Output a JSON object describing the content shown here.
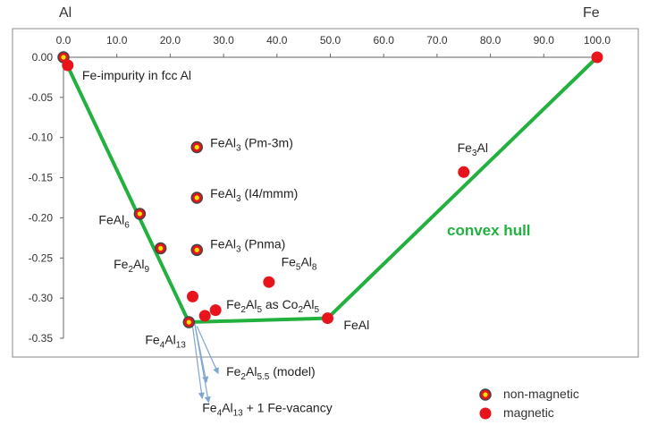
{
  "corner_labels": {
    "left": "Al",
    "right": "Fe"
  },
  "colors": {
    "hull": "#22b13f",
    "magnetic": "#e8141c",
    "nonmagnetic_outer": "#e8141c",
    "nonmagnetic_inner": "#f2e600",
    "nonmagnetic_ring": "#444444",
    "axis": "#666666",
    "hull_label": "#22b13f",
    "plot_border": "#888888"
  },
  "chart_data": {
    "type": "scatter",
    "xlim": [
      0,
      100
    ],
    "ylim": [
      -0.35,
      0.0
    ],
    "grid": false,
    "x_ticks": [
      0,
      10,
      20,
      30,
      40,
      50,
      60,
      70,
      80,
      90,
      100
    ],
    "x_tick_labels": [
      "0.0",
      "10.0",
      "20.0",
      "30.0",
      "40.0",
      "50.0",
      "60.0",
      "70.0",
      "80.0",
      "90.0",
      "100.0"
    ],
    "y_ticks": [
      0.0,
      -0.05,
      -0.1,
      -0.15,
      -0.2,
      -0.25,
      -0.3,
      -0.35
    ],
    "y_tick_labels": [
      "0.00",
      "-0.05",
      "-0.10",
      "-0.15",
      "-0.20",
      "-0.25",
      "-0.30",
      "-0.35"
    ],
    "hull": {
      "label": "convex hull",
      "points": [
        [
          0,
          0
        ],
        [
          23.5,
          -0.33
        ],
        [
          49.5,
          -0.325
        ],
        [
          100,
          0
        ]
      ]
    },
    "series": [
      {
        "name": "non-magnetic",
        "marker": "nonmagnetic",
        "points": [
          [
            0,
            0.0
          ],
          [
            14.3,
            -0.195
          ],
          [
            18.2,
            -0.238
          ],
          [
            23.5,
            -0.33
          ],
          [
            25,
            -0.112
          ],
          [
            25,
            -0.175
          ],
          [
            25,
            -0.24
          ]
        ]
      },
      {
        "name": "magnetic",
        "marker": "magnetic",
        "points": [
          [
            0.8,
            -0.01
          ],
          [
            24.2,
            -0.298
          ],
          [
            26.5,
            -0.322
          ],
          [
            28.5,
            -0.315
          ],
          [
            38.5,
            -0.28
          ],
          [
            49.5,
            -0.325
          ],
          [
            75,
            -0.143
          ],
          [
            100,
            0.0
          ]
        ]
      }
    ],
    "legend": {
      "placement": "bottom-right",
      "entries": [
        {
          "label": "non-magnetic",
          "marker": "nonmagnetic"
        },
        {
          "label": "magnetic",
          "marker": "magnetic"
        }
      ]
    },
    "annotations": [
      {
        "id": "fe-impurity",
        "parts": [
          {
            "t": "Fe-impurity in fcc Al"
          }
        ],
        "x": 3.5,
        "y": -0.028,
        "anchor": "start"
      },
      {
        "id": "feal3-pm3m",
        "parts": [
          {
            "t": "FeAl"
          },
          {
            "t": "3",
            "sub": true
          },
          {
            "t": " (Pm-3m)"
          }
        ],
        "x": 27.5,
        "y": -0.112,
        "anchor": "start"
      },
      {
        "id": "feal3-i4mmm",
        "parts": [
          {
            "t": "FeAl"
          },
          {
            "t": "3",
            "sub": true
          },
          {
            "t": " (I4/mmm)"
          }
        ],
        "x": 27.5,
        "y": -0.175,
        "anchor": "start"
      },
      {
        "id": "feal3-pnma",
        "parts": [
          {
            "t": "FeAl"
          },
          {
            "t": "3",
            "sub": true
          },
          {
            "t": " (Pnma)"
          }
        ],
        "x": 27.5,
        "y": -0.238,
        "anchor": "start"
      },
      {
        "id": "feal6",
        "parts": [
          {
            "t": "FeAl"
          },
          {
            "t": "6",
            "sub": true
          }
        ],
        "x": 6.6,
        "y": -0.208,
        "anchor": "start"
      },
      {
        "id": "fe2al9",
        "parts": [
          {
            "t": "Fe"
          },
          {
            "t": "2",
            "sub": true
          },
          {
            "t": "Al"
          },
          {
            "t": "9",
            "sub": true
          }
        ],
        "x": 9.4,
        "y": -0.263,
        "anchor": "start"
      },
      {
        "id": "fe5al8",
        "parts": [
          {
            "t": "Fe"
          },
          {
            "t": "5",
            "sub": true
          },
          {
            "t": "Al"
          },
          {
            "t": "8",
            "sub": true
          }
        ],
        "x": 40.8,
        "y": -0.26,
        "anchor": "start"
      },
      {
        "id": "fe2al5-co2al5",
        "parts": [
          {
            "t": "Fe"
          },
          {
            "t": "2",
            "sub": true
          },
          {
            "t": "Al"
          },
          {
            "t": "5",
            "sub": true
          },
          {
            "t": " as Co"
          },
          {
            "t": "2",
            "sub": true
          },
          {
            "t": "Al"
          },
          {
            "t": "5",
            "sub": true
          }
        ],
        "x": 30.5,
        "y": -0.313,
        "anchor": "start"
      },
      {
        "id": "feal",
        "parts": [
          {
            "t": "FeAl"
          }
        ],
        "x": 52.5,
        "y": -0.339,
        "anchor": "start"
      },
      {
        "id": "fe3al",
        "parts": [
          {
            "t": "Fe"
          },
          {
            "t": "3",
            "sub": true
          },
          {
            "t": "Al"
          }
        ],
        "x": 73.8,
        "y": -0.118,
        "anchor": "start"
      },
      {
        "id": "fe4al13",
        "parts": [
          {
            "t": "Fe"
          },
          {
            "t": "4",
            "sub": true
          },
          {
            "t": "Al"
          },
          {
            "t": "13",
            "sub": true
          }
        ],
        "x": 15.3,
        "y": -0.357,
        "anchor": "start"
      },
      {
        "id": "fe2al55-model",
        "parts": [
          {
            "t": "Fe"
          },
          {
            "t": "2",
            "sub": true
          },
          {
            "t": "Al"
          },
          {
            "t": "5.5",
            "sub": true
          },
          {
            "t": " (model)"
          }
        ],
        "x": 30.5,
        "y": -0.397,
        "anchor": "start"
      },
      {
        "id": "fe4al13-vacancy",
        "parts": [
          {
            "t": "Fe"
          },
          {
            "t": "4",
            "sub": true
          },
          {
            "t": "Al"
          },
          {
            "t": "13",
            "sub": true
          },
          {
            "t": " + 1 Fe-vacancy"
          }
        ],
        "x": 26.0,
        "y": -0.442,
        "anchor": "start"
      }
    ],
    "callouts": [
      {
        "from": [
          24.6,
          -0.332
        ],
        "to": [
          26.8,
          -0.405
        ]
      },
      {
        "from": [
          24.6,
          -0.332
        ],
        "to": [
          27.2,
          -0.43
        ]
      },
      {
        "from": [
          24.2,
          -0.335
        ],
        "to": [
          26.0,
          -0.425
        ]
      },
      {
        "from": [
          25.0,
          -0.335
        ],
        "to": [
          29.0,
          -0.394
        ]
      }
    ]
  }
}
